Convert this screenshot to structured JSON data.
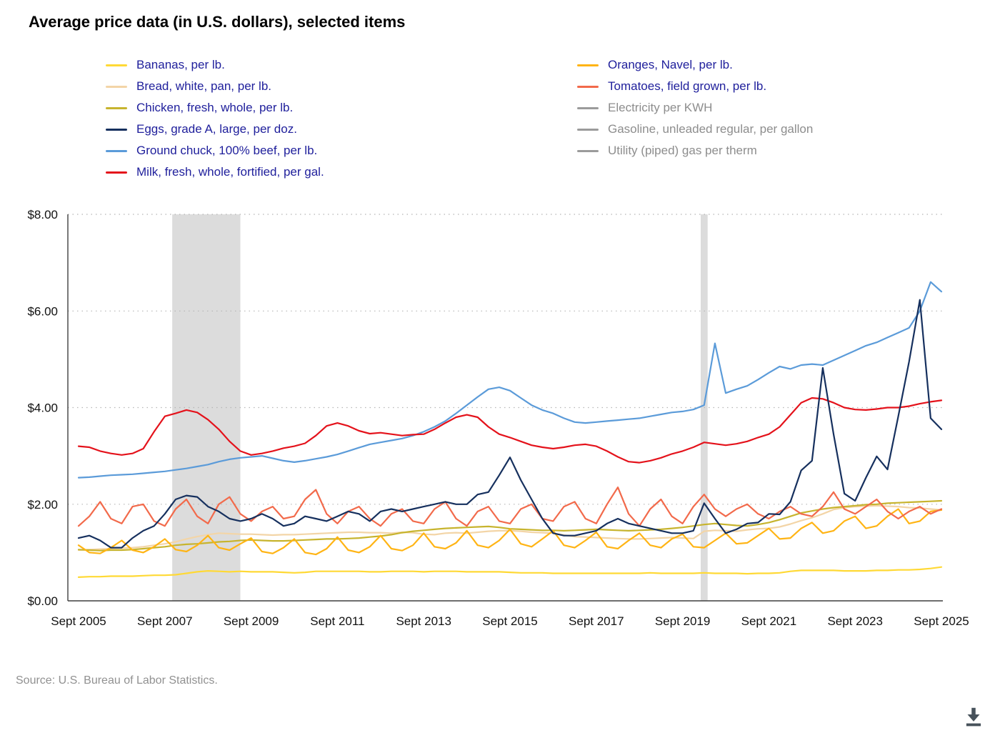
{
  "page": {
    "title": "Average price data (in U.S. dollars), selected items",
    "source": "Source: U.S. Bureau of Labor Statistics."
  },
  "colors": {
    "legend_text_active": "#20209C",
    "legend_text_inactive": "#8D8D8D",
    "recession_band": "#DCDCDC",
    "gridline": "#B5B5B5",
    "axis": "#3F3F3F"
  },
  "chart_data": {
    "type": "line",
    "title": "Average price data (in U.S. dollars), selected items",
    "x_range": [
      2005.75,
      2025.75
    ],
    "x_step": 0.25,
    "x_axis": {
      "ticks": [
        "Sept 2005",
        "Sept 2007",
        "Sept 2009",
        "Sept 2011",
        "Sept 2013",
        "Sept 2015",
        "Sept 2017",
        "Sept 2019",
        "Sept 2021",
        "Sept 2023",
        "Sept 2025"
      ]
    },
    "y_axis": {
      "ticks": [
        "$0.00",
        "$2.00",
        "$4.00",
        "$6.00",
        "$8.00"
      ],
      "values": [
        0,
        2,
        4,
        6,
        8
      ],
      "range": [
        0,
        8
      ]
    },
    "grid": "dotted horizontal",
    "legend_position": "top, two columns",
    "recessions": [
      {
        "start": 2007.92,
        "end": 2009.5
      },
      {
        "start": 2020.17,
        "end": 2020.33
      }
    ],
    "series": [
      {
        "id": "bananas",
        "name": "Bananas, per lb.",
        "color": "#FFD935",
        "visible": true,
        "legend_column": 1,
        "z": 1,
        "values": [
          0.49,
          0.5,
          0.5,
          0.51,
          0.51,
          0.51,
          0.52,
          0.53,
          0.53,
          0.54,
          0.57,
          0.6,
          0.62,
          0.61,
          0.6,
          0.61,
          0.6,
          0.6,
          0.6,
          0.59,
          0.58,
          0.59,
          0.61,
          0.61,
          0.61,
          0.61,
          0.61,
          0.6,
          0.6,
          0.61,
          0.61,
          0.61,
          0.6,
          0.61,
          0.61,
          0.61,
          0.6,
          0.6,
          0.6,
          0.6,
          0.59,
          0.58,
          0.58,
          0.58,
          0.57,
          0.57,
          0.57,
          0.57,
          0.57,
          0.57,
          0.57,
          0.57,
          0.57,
          0.58,
          0.57,
          0.57,
          0.57,
          0.57,
          0.58,
          0.57,
          0.57,
          0.57,
          0.56,
          0.57,
          0.57,
          0.58,
          0.61,
          0.63,
          0.63,
          0.63,
          0.63,
          0.62,
          0.62,
          0.62,
          0.63,
          0.63,
          0.64,
          0.64,
          0.65,
          0.67,
          0.7
        ]
      },
      {
        "id": "bread",
        "name": "Bread, white, pan, per lb.",
        "color": "#F3D5A7",
        "visible": true,
        "legend_column": 1,
        "z": 2,
        "values": [
          1.05,
          1.06,
          1.07,
          1.08,
          1.09,
          1.1,
          1.12,
          1.15,
          1.18,
          1.22,
          1.28,
          1.33,
          1.37,
          1.4,
          1.39,
          1.38,
          1.38,
          1.37,
          1.36,
          1.37,
          1.37,
          1.38,
          1.39,
          1.4,
          1.41,
          1.42,
          1.42,
          1.41,
          1.41,
          1.4,
          1.42,
          1.41,
          1.38,
          1.37,
          1.4,
          1.41,
          1.4,
          1.42,
          1.44,
          1.45,
          1.45,
          1.44,
          1.42,
          1.41,
          1.4,
          1.36,
          1.33,
          1.32,
          1.31,
          1.3,
          1.29,
          1.28,
          1.28,
          1.29,
          1.3,
          1.31,
          1.3,
          1.29,
          1.44,
          1.46,
          1.45,
          1.44,
          1.47,
          1.49,
          1.5,
          1.53,
          1.59,
          1.66,
          1.72,
          1.8,
          1.89,
          1.93,
          1.95,
          1.96,
          1.97,
          1.96,
          1.95,
          1.93,
          1.92,
          1.9,
          1.88
        ]
      },
      {
        "id": "chicken",
        "name": "Chicken, fresh, whole, per lb.",
        "color": "#C7B42E",
        "visible": true,
        "legend_column": 1,
        "z": 3,
        "values": [
          1.06,
          1.05,
          1.04,
          1.05,
          1.05,
          1.06,
          1.08,
          1.1,
          1.12,
          1.15,
          1.17,
          1.18,
          1.2,
          1.22,
          1.23,
          1.25,
          1.26,
          1.25,
          1.24,
          1.24,
          1.25,
          1.26,
          1.27,
          1.28,
          1.28,
          1.29,
          1.3,
          1.32,
          1.34,
          1.37,
          1.41,
          1.44,
          1.46,
          1.48,
          1.5,
          1.51,
          1.52,
          1.53,
          1.54,
          1.52,
          1.49,
          1.48,
          1.47,
          1.46,
          1.46,
          1.45,
          1.46,
          1.47,
          1.48,
          1.47,
          1.46,
          1.45,
          1.46,
          1.47,
          1.48,
          1.5,
          1.52,
          1.55,
          1.58,
          1.6,
          1.58,
          1.56,
          1.55,
          1.58,
          1.62,
          1.68,
          1.75,
          1.82,
          1.86,
          1.9,
          1.93,
          1.95,
          1.97,
          1.99,
          2.0,
          2.02,
          2.03,
          2.04,
          2.05,
          2.06,
          2.07
        ]
      },
      {
        "id": "eggs",
        "name": "Eggs, grade A, large, per doz.",
        "color": "#16305E",
        "visible": true,
        "legend_column": 1,
        "z": 8,
        "values": [
          1.3,
          1.35,
          1.25,
          1.1,
          1.1,
          1.3,
          1.45,
          1.55,
          1.8,
          2.1,
          2.18,
          2.15,
          1.95,
          1.85,
          1.7,
          1.65,
          1.7,
          1.8,
          1.7,
          1.55,
          1.6,
          1.75,
          1.7,
          1.65,
          1.75,
          1.85,
          1.8,
          1.65,
          1.85,
          1.9,
          1.85,
          1.9,
          1.95,
          2.0,
          2.05,
          2.0,
          2.0,
          2.2,
          2.25,
          2.6,
          2.97,
          2.5,
          2.1,
          1.7,
          1.4,
          1.35,
          1.35,
          1.4,
          1.45,
          1.6,
          1.7,
          1.6,
          1.55,
          1.5,
          1.45,
          1.4,
          1.4,
          1.45,
          2.02,
          1.7,
          1.4,
          1.48,
          1.6,
          1.62,
          1.8,
          1.79,
          2.05,
          2.7,
          2.9,
          4.82,
          3.45,
          2.22,
          2.07,
          2.55,
          2.99,
          2.72,
          3.82,
          4.95,
          6.23,
          3.78,
          3.55
        ]
      },
      {
        "id": "ground-chuck",
        "name": "Ground chuck, 100% beef, per lb.",
        "color": "#5B9BD9",
        "visible": true,
        "legend_column": 1,
        "z": 6,
        "values": [
          2.55,
          2.56,
          2.58,
          2.6,
          2.61,
          2.62,
          2.64,
          2.66,
          2.68,
          2.71,
          2.74,
          2.78,
          2.82,
          2.88,
          2.93,
          2.96,
          2.98,
          3.0,
          2.95,
          2.9,
          2.87,
          2.9,
          2.94,
          2.98,
          3.03,
          3.1,
          3.17,
          3.24,
          3.28,
          3.32,
          3.36,
          3.42,
          3.5,
          3.6,
          3.72,
          3.88,
          4.05,
          4.22,
          4.38,
          4.42,
          4.35,
          4.2,
          4.05,
          3.95,
          3.88,
          3.78,
          3.7,
          3.68,
          3.7,
          3.72,
          3.74,
          3.76,
          3.78,
          3.82,
          3.86,
          3.9,
          3.92,
          3.96,
          4.05,
          5.33,
          4.3,
          4.38,
          4.45,
          4.58,
          4.72,
          4.85,
          4.8,
          4.88,
          4.9,
          4.88,
          4.98,
          5.08,
          5.18,
          5.28,
          5.35,
          5.45,
          5.55,
          5.65,
          6.0,
          6.6,
          6.4
        ]
      },
      {
        "id": "milk",
        "name": "Milk, fresh, whole, fortified, per gal.",
        "color": "#E4121B",
        "visible": true,
        "legend_column": 1,
        "z": 7,
        "values": [
          3.2,
          3.18,
          3.1,
          3.05,
          3.02,
          3.05,
          3.15,
          3.5,
          3.82,
          3.88,
          3.95,
          3.9,
          3.75,
          3.55,
          3.3,
          3.1,
          3.02,
          3.05,
          3.1,
          3.16,
          3.2,
          3.26,
          3.42,
          3.62,
          3.68,
          3.62,
          3.52,
          3.46,
          3.48,
          3.45,
          3.42,
          3.44,
          3.45,
          3.55,
          3.68,
          3.8,
          3.85,
          3.8,
          3.6,
          3.45,
          3.38,
          3.3,
          3.22,
          3.18,
          3.15,
          3.18,
          3.22,
          3.24,
          3.2,
          3.1,
          2.98,
          2.88,
          2.86,
          2.9,
          2.96,
          3.04,
          3.1,
          3.18,
          3.28,
          3.25,
          3.22,
          3.25,
          3.3,
          3.38,
          3.45,
          3.6,
          3.85,
          4.1,
          4.2,
          4.18,
          4.1,
          4.0,
          3.96,
          3.95,
          3.97,
          4.0,
          4.0,
          4.03,
          4.08,
          4.12,
          4.15
        ]
      },
      {
        "id": "oranges",
        "name": "Oranges, Navel, per lb.",
        "color": "#FFB414",
        "visible": true,
        "legend_column": 2,
        "z": 4,
        "values": [
          1.15,
          1.0,
          0.98,
          1.1,
          1.25,
          1.05,
          1.0,
          1.12,
          1.28,
          1.06,
          1.02,
          1.15,
          1.35,
          1.1,
          1.05,
          1.18,
          1.3,
          1.02,
          0.98,
          1.1,
          1.28,
          1.0,
          0.96,
          1.08,
          1.32,
          1.05,
          1.0,
          1.12,
          1.35,
          1.08,
          1.04,
          1.15,
          1.4,
          1.12,
          1.08,
          1.2,
          1.45,
          1.15,
          1.1,
          1.25,
          1.48,
          1.18,
          1.12,
          1.28,
          1.45,
          1.15,
          1.1,
          1.25,
          1.42,
          1.12,
          1.08,
          1.25,
          1.4,
          1.15,
          1.1,
          1.28,
          1.38,
          1.12,
          1.1,
          1.25,
          1.4,
          1.18,
          1.2,
          1.35,
          1.5,
          1.28,
          1.3,
          1.5,
          1.62,
          1.4,
          1.45,
          1.65,
          1.75,
          1.5,
          1.55,
          1.75,
          1.9,
          1.6,
          1.65,
          1.85,
          1.88
        ]
      },
      {
        "id": "tomatoes",
        "name": "Tomatoes, field grown, per lb.",
        "color": "#F26A4B",
        "visible": true,
        "legend_column": 2,
        "z": 5,
        "values": [
          1.55,
          1.75,
          2.05,
          1.7,
          1.6,
          1.95,
          2.0,
          1.65,
          1.55,
          1.9,
          2.1,
          1.75,
          1.6,
          2.0,
          2.15,
          1.8,
          1.65,
          1.85,
          1.95,
          1.7,
          1.75,
          2.1,
          2.3,
          1.8,
          1.6,
          1.85,
          1.95,
          1.7,
          1.55,
          1.8,
          1.9,
          1.65,
          1.6,
          1.9,
          2.05,
          1.7,
          1.55,
          1.85,
          1.95,
          1.65,
          1.6,
          1.9,
          2.0,
          1.7,
          1.65,
          1.95,
          2.05,
          1.7,
          1.6,
          2.0,
          2.35,
          1.8,
          1.55,
          1.9,
          2.1,
          1.75,
          1.6,
          1.95,
          2.2,
          1.9,
          1.75,
          1.9,
          2.0,
          1.8,
          1.7,
          1.85,
          1.95,
          1.8,
          1.75,
          1.95,
          2.25,
          1.9,
          1.8,
          1.95,
          2.1,
          1.85,
          1.7,
          1.85,
          1.95,
          1.8,
          1.9
        ]
      },
      {
        "id": "electricity",
        "name": "Electricity per KWH",
        "color": "#9B9B9B",
        "visible": false,
        "legend_column": 2,
        "z": 0,
        "values": []
      },
      {
        "id": "gasoline",
        "name": "Gasoline, unleaded regular, per gallon",
        "color": "#9B9B9B",
        "visible": false,
        "legend_column": 2,
        "z": 0,
        "values": []
      },
      {
        "id": "utility-gas",
        "name": "Utility (piped) gas per therm",
        "color": "#9B9B9B",
        "visible": false,
        "legend_column": 2,
        "z": 0,
        "values": []
      }
    ]
  }
}
